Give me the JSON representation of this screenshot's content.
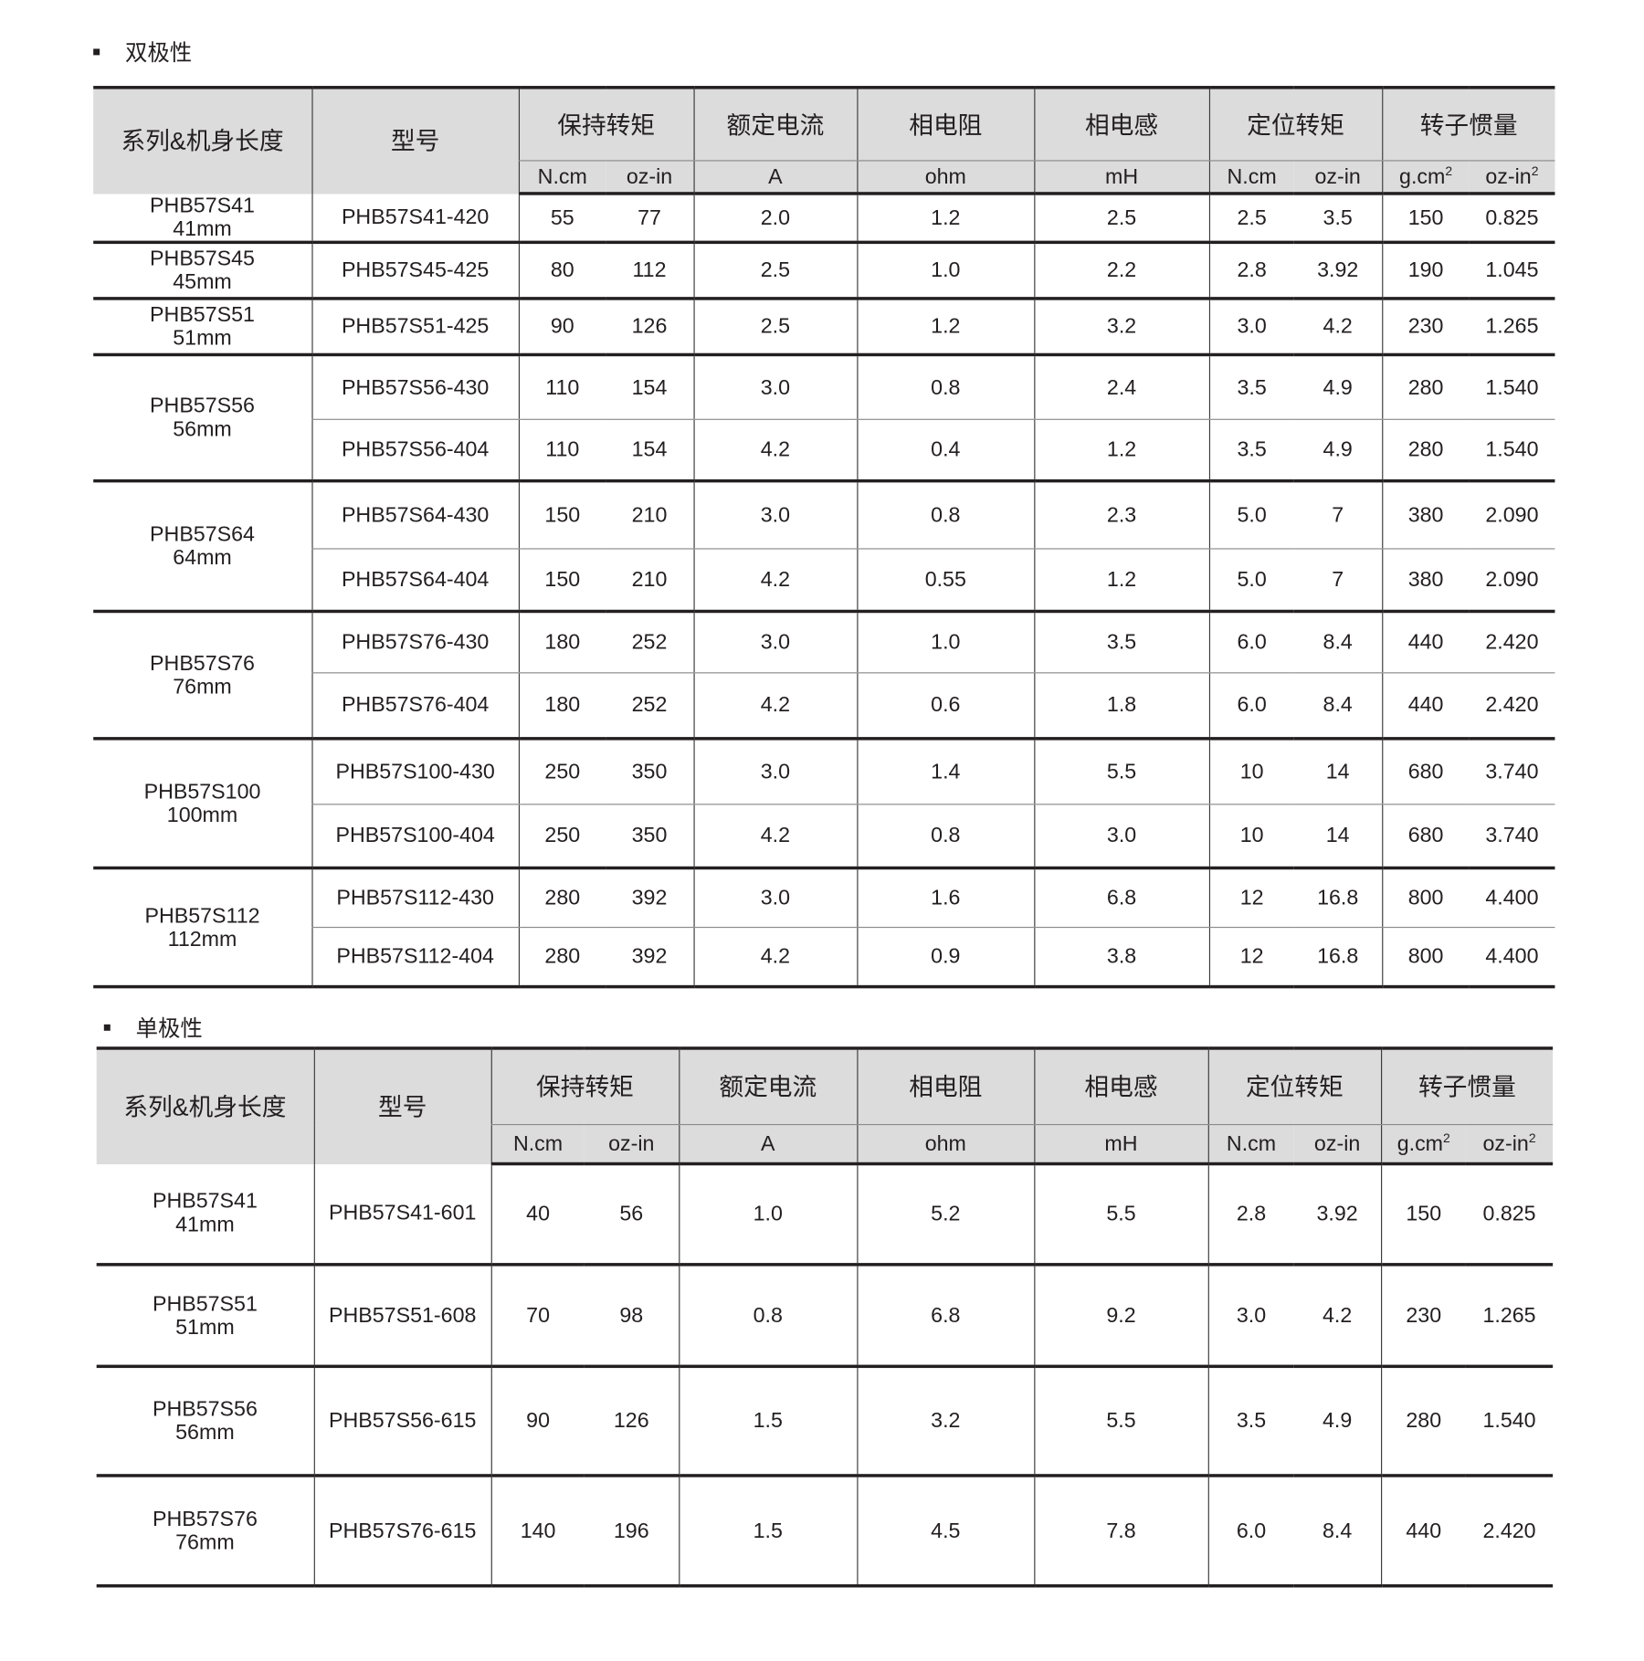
{
  "bipolar": {
    "title": "双极性",
    "headers": {
      "series": "系列&机身长度",
      "model": "型号",
      "holding_torque": "保持转矩",
      "rated_current": "额定电流",
      "phase_resistance": "相电阻",
      "phase_inductance": "相电感",
      "detent_torque": "定位转矩",
      "rotor_inertia": "转子惯量"
    },
    "units": {
      "holding_torque": [
        "N.cm",
        "oz-in"
      ],
      "rated_current": "A",
      "phase_resistance": "ohm",
      "phase_inductance": "mH",
      "detent_torque": [
        "N.cm",
        "oz-in"
      ],
      "rotor_inertia": [
        "g.cm",
        "oz-in"
      ],
      "rotor_inertia_exp": "2"
    },
    "groups": [
      {
        "series": "PHB57S41",
        "length": "41mm",
        "rows": [
          [
            "PHB57S41-420",
            "55",
            "77",
            "2.0",
            "1.2",
            "2.5",
            "2.5",
            "3.5",
            "150",
            "0.825"
          ]
        ]
      },
      {
        "series": "PHB57S45",
        "length": "45mm",
        "rows": [
          [
            "PHB57S45-425",
            "80",
            "112",
            "2.5",
            "1.0",
            "2.2",
            "2.8",
            "3.92",
            "190",
            "1.045"
          ]
        ]
      },
      {
        "series": "PHB57S51",
        "length": "51mm",
        "rows": [
          [
            "PHB57S51-425",
            "90",
            "126",
            "2.5",
            "1.2",
            "3.2",
            "3.0",
            "4.2",
            "230",
            "1.265"
          ]
        ]
      },
      {
        "series": "PHB57S56",
        "length": "56mm",
        "rows": [
          [
            "PHB57S56-430",
            "110",
            "154",
            "3.0",
            "0.8",
            "2.4",
            "3.5",
            "4.9",
            "280",
            "1.540"
          ],
          [
            "PHB57S56-404",
            "110",
            "154",
            "4.2",
            "0.4",
            "1.2",
            "3.5",
            "4.9",
            "280",
            "1.540"
          ]
        ]
      },
      {
        "series": "PHB57S64",
        "length": "64mm",
        "rows": [
          [
            "PHB57S64-430",
            "150",
            "210",
            "3.0",
            "0.8",
            "2.3",
            "5.0",
            "7",
            "380",
            "2.090"
          ],
          [
            "PHB57S64-404",
            "150",
            "210",
            "4.2",
            "0.55",
            "1.2",
            "5.0",
            "7",
            "380",
            "2.090"
          ]
        ]
      },
      {
        "series": "PHB57S76",
        "length": "76mm",
        "rows": [
          [
            "PHB57S76-430",
            "180",
            "252",
            "3.0",
            "1.0",
            "3.5",
            "6.0",
            "8.4",
            "440",
            "2.420"
          ],
          [
            "PHB57S76-404",
            "180",
            "252",
            "4.2",
            "0.6",
            "1.8",
            "6.0",
            "8.4",
            "440",
            "2.420"
          ]
        ]
      },
      {
        "series": "PHB57S100",
        "length": "100mm",
        "rows": [
          [
            "PHB57S100-430",
            "250",
            "350",
            "3.0",
            "1.4",
            "5.5",
            "10",
            "14",
            "680",
            "3.740"
          ],
          [
            "PHB57S100-404",
            "250",
            "350",
            "4.2",
            "0.8",
            "3.0",
            "10",
            "14",
            "680",
            "3.740"
          ]
        ]
      },
      {
        "series": "PHB57S112",
        "length": "112mm",
        "rows": [
          [
            "PHB57S112-430",
            "280",
            "392",
            "3.0",
            "1.6",
            "6.8",
            "12",
            "16.8",
            "800",
            "4.400"
          ],
          [
            "PHB57S112-404",
            "280",
            "392",
            "4.2",
            "0.9",
            "3.8",
            "12",
            "16.8",
            "800",
            "4.400"
          ]
        ]
      }
    ]
  },
  "unipolar": {
    "title": "单极性",
    "headers": {
      "series": "系列&机身长度",
      "model": "型号",
      "holding_torque": "保持转矩",
      "rated_current": "额定电流",
      "phase_resistance": "相电阻",
      "phase_inductance": "相电感",
      "detent_torque": "定位转矩",
      "rotor_inertia": "转子惯量"
    },
    "units": {
      "holding_torque": [
        "N.cm",
        "oz-in"
      ],
      "rated_current": "A",
      "phase_resistance": "ohm",
      "phase_inductance": "mH",
      "detent_torque": [
        "N.cm",
        "oz-in"
      ],
      "rotor_inertia": [
        "g.cm",
        "oz-in"
      ],
      "rotor_inertia_exp": "2"
    },
    "groups": [
      {
        "series": "PHB57S41",
        "length": "41mm",
        "rows": [
          [
            "PHB57S41-601",
            "40",
            "56",
            "1.0",
            "5.2",
            "5.5",
            "2.8",
            "3.92",
            "150",
            "0.825"
          ]
        ]
      },
      {
        "series": "PHB57S51",
        "length": "51mm",
        "rows": [
          [
            "PHB57S51-608",
            "70",
            "98",
            "0.8",
            "6.8",
            "9.2",
            "3.0",
            "4.2",
            "230",
            "1.265"
          ]
        ]
      },
      {
        "series": "PHB57S56",
        "length": "56mm",
        "rows": [
          [
            "PHB57S56-615",
            "90",
            "126",
            "1.5",
            "3.2",
            "5.5",
            "3.5",
            "4.9",
            "280",
            "1.540"
          ]
        ]
      },
      {
        "series": "PHB57S76",
        "length": "76mm",
        "rows": [
          [
            "PHB57S76-615",
            "140",
            "196",
            "1.5",
            "4.5",
            "7.8",
            "6.0",
            "8.4",
            "440",
            "2.420"
          ]
        ]
      }
    ]
  }
}
